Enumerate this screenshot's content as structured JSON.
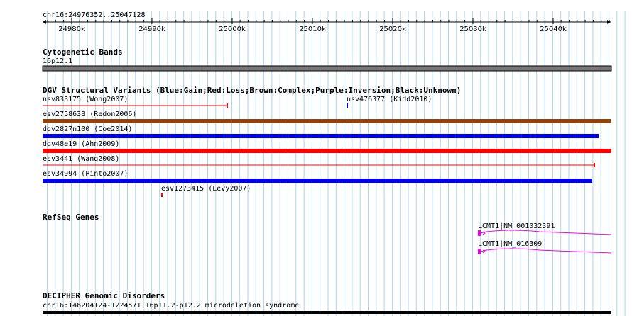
{
  "browser": {
    "location": "chr16:24976352..25047128",
    "ruler_ticks": [
      "24980k",
      "24990k",
      "25000k",
      "25010k",
      "25020k",
      "25030k",
      "25040k"
    ],
    "colors": {
      "grid": "#a9d6ee",
      "band": "#777777",
      "gain": "#0000ee",
      "loss": "#ff0000",
      "complex": "#8b4513",
      "gene": "#ee00ee"
    }
  },
  "tracks": {
    "cytobands": {
      "title": "Cytogenetic Bands",
      "band_label": "16p12.1"
    },
    "dgv": {
      "title": "DGV Structural Variants (Blue:Gain;Red:Loss;Brown:Complex;Purple:Inversion;Black:Unknown)",
      "features": [
        {
          "label": "nsv833175 (Wong2007)",
          "type": "loss"
        },
        {
          "label": "nsv476377 (Kidd2010)",
          "type": "gain"
        },
        {
          "label": "esv2758638 (Redon2006)",
          "type": "complex"
        },
        {
          "label": "dgv2827n100 (Coe2014)",
          "type": "gain"
        },
        {
          "label": "dgv48e19 (Ahn2009)",
          "type": "loss"
        },
        {
          "label": "esv3441 (Wang2008)",
          "type": "loss"
        },
        {
          "label": "esv34994 (Pinto2007)",
          "type": "gain"
        },
        {
          "label": "esv1273415 (Levy2007)",
          "type": "loss"
        }
      ]
    },
    "refseq": {
      "title": "RefSeq Genes",
      "genes": [
        "LCMT1|NM_001032391",
        "LCMT1|NM_016309"
      ]
    },
    "decipher": {
      "title": "DECIPHER Genomic Disorders",
      "feature_label": "chr16:146204124-1224571|16p11.2-p12.2 microdeletion syndrome"
    }
  }
}
